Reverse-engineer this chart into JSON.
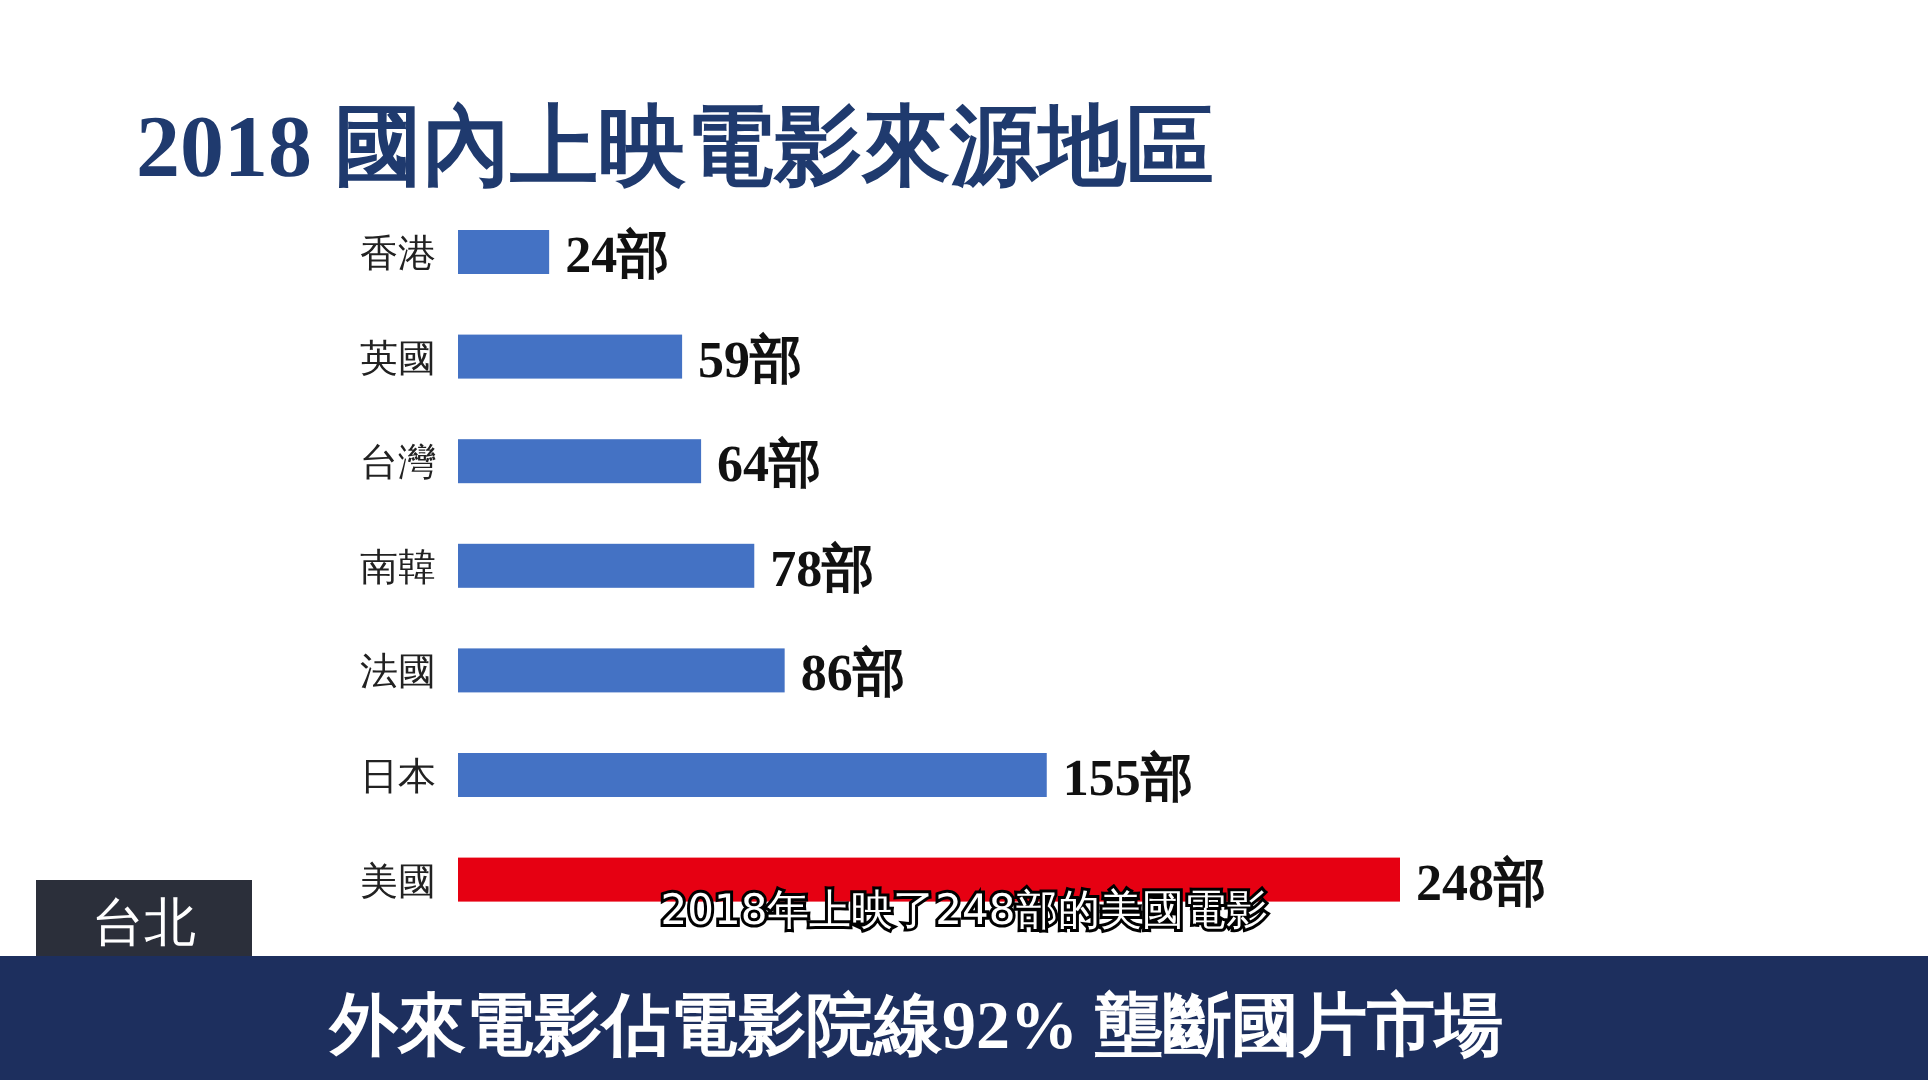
{
  "chart_data": {
    "type": "bar",
    "orientation": "horizontal",
    "title": "2018 國內上映電影來源地區",
    "categories": [
      "香港",
      "英國",
      "台灣",
      "南韓",
      "法國",
      "日本",
      "美國"
    ],
    "values": [
      24,
      59,
      64,
      78,
      86,
      155,
      248
    ],
    "colors": [
      "#4472c4",
      "#4472c4",
      "#4472c4",
      "#4472c4",
      "#4472c4",
      "#4472c4",
      "#e60012"
    ],
    "value_labels": [
      "24部",
      "59部",
      "64部",
      "78部",
      "86部",
      "155部",
      "248部"
    ],
    "annotations": [
      "2018年上映了248部的美國電影",
      "外來電影佔電影院線92% 壟斷國片市場",
      "台北"
    ]
  }
}
